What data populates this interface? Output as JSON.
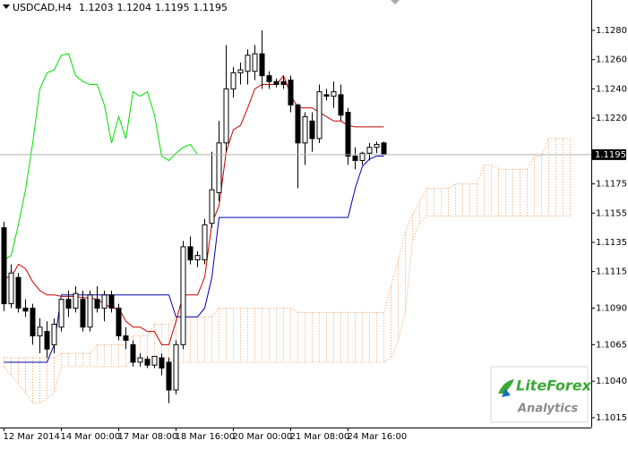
{
  "chart_data": {
    "type": "candlestick",
    "header": {
      "symbol": "USDCAD,H4",
      "values": [
        "1.1203",
        "1.1204",
        "1.1195",
        "1.1195"
      ]
    },
    "categories": [
      "12 Mar 2014",
      null,
      null,
      null,
      null,
      null,
      null,
      null,
      "14 Mar 00:00",
      null,
      null,
      null,
      null,
      null,
      null,
      null,
      "17 Mar 08:00",
      null,
      null,
      null,
      null,
      null,
      null,
      null,
      "18 Mar 16:00",
      null,
      null,
      null,
      null,
      null,
      null,
      null,
      "20 Mar 00:00",
      null,
      null,
      null,
      null,
      null,
      null,
      null,
      "21 Mar 08:00",
      null,
      null,
      null,
      null,
      null,
      null,
      null,
      "24 Mar 16:00",
      null,
      null,
      null,
      null,
      null
    ],
    "open": [
      1.1145,
      1.1093,
      1.1111,
      1.109,
      1.109,
      1.1071,
      1.1074,
      1.1065,
      1.1077,
      1.1096,
      1.109,
      1.1096,
      1.1077,
      1.1096,
      1.109,
      1.1099,
      1.109,
      1.1071,
      1.1065,
      1.1053,
      1.1055,
      1.1051,
      1.1056,
      1.1053,
      1.1034,
      1.1065,
      1.1132,
      1.1123,
      1.1123,
      1.1148,
      1.1169,
      1.1203,
      1.124,
      1.1251,
      1.1252,
      1.1252,
      1.1264,
      1.1249,
      1.1245,
      1.1245,
      1.1246,
      1.1229,
      1.1203,
      1.1218,
      1.1206,
      1.1236,
      1.1235,
      1.1236,
      1.1224,
      1.1194,
      1.1191,
      1.1196,
      1.12,
      1.1203
    ],
    "high": [
      1.1149,
      1.112,
      1.1114,
      1.1096,
      1.1093,
      1.1083,
      1.1081,
      1.1083,
      1.1096,
      1.1102,
      1.1105,
      1.1102,
      1.1102,
      1.1105,
      1.1102,
      1.1102,
      1.1093,
      1.1077,
      1.1068,
      1.1059,
      1.1057,
      1.1057,
      1.1059,
      1.1056,
      1.1068,
      1.1136,
      1.1139,
      1.1129,
      1.1151,
      1.1197,
      1.1218,
      1.127,
      1.1255,
      1.1258,
      1.1267,
      1.127,
      1.128,
      1.1252,
      1.1247,
      1.1249,
      1.1249,
      1.123,
      1.1224,
      1.1224,
      1.1243,
      1.124,
      1.1245,
      1.1243,
      1.1227,
      1.12,
      1.1197,
      1.1203,
      1.1204,
      1.1204
    ],
    "low": [
      1.1088,
      1.109,
      1.1087,
      1.1084,
      1.1065,
      1.1059,
      1.1056,
      1.1059,
      1.1074,
      1.1084,
      1.1087,
      1.1074,
      1.1074,
      1.1087,
      1.1081,
      1.1087,
      1.1068,
      1.1062,
      1.105,
      1.105,
      1.1049,
      1.1049,
      1.1044,
      1.1025,
      1.1031,
      1.1062,
      1.112,
      1.1118,
      1.112,
      1.1145,
      1.1163,
      1.1197,
      1.1234,
      1.1243,
      1.1243,
      1.1246,
      1.124,
      1.124,
      1.1241,
      1.124,
      1.1224,
      1.1172,
      1.1188,
      1.1197,
      1.1203,
      1.1232,
      1.1227,
      1.1218,
      1.1188,
      1.1185,
      1.1188,
      1.1191,
      1.1196,
      1.1195
    ],
    "close": [
      1.1093,
      1.1114,
      1.109,
      1.1088,
      1.1071,
      1.1077,
      1.1062,
      1.1079,
      1.1096,
      1.109,
      1.11,
      1.1077,
      1.1099,
      1.109,
      1.1099,
      1.109,
      1.1071,
      1.1068,
      1.1053,
      1.1056,
      1.1051,
      1.1057,
      1.1049,
      1.1034,
      1.1065,
      1.1132,
      1.1123,
      1.1126,
      1.1147,
      1.1171,
      1.1203,
      1.124,
      1.1251,
      1.1253,
      1.1263,
      1.1264,
      1.1249,
      1.1245,
      1.1243,
      1.1243,
      1.1229,
      1.1203,
      1.1221,
      1.1206,
      1.1238,
      1.1235,
      1.1238,
      1.1222,
      1.1194,
      1.1191,
      1.1196,
      1.12,
      1.1202,
      1.1195
    ],
    "red_line": [
      1.1111,
      1.1111,
      1.112,
      1.1117,
      1.1108,
      1.1102,
      1.1099,
      1.1099,
      1.1098,
      1.1098,
      1.1098,
      1.1097,
      1.1097,
      1.1096,
      1.1093,
      1.109,
      1.109,
      1.1081,
      1.1077,
      1.1077,
      1.1074,
      1.1074,
      1.1065,
      1.1065,
      1.1081,
      1.1099,
      1.1099,
      1.1099,
      1.1111,
      1.1148,
      1.116,
      1.1197,
      1.1212,
      1.1215,
      1.1227,
      1.124,
      1.1243,
      1.1243,
      1.1243,
      1.1249,
      1.1236,
      1.1227,
      1.1227,
      1.1227,
      1.1224,
      1.1221,
      1.1218,
      1.1218,
      1.1215,
      1.1214,
      1.1214,
      1.1214,
      1.1214,
      1.1214
    ],
    "blue_line": [
      1.1053,
      1.1053,
      1.1053,
      1.1053,
      1.1053,
      1.1053,
      1.1053,
      1.1065,
      1.1099,
      1.1099,
      1.1099,
      1.1099,
      1.1099,
      1.1099,
      1.1099,
      1.1099,
      1.1099,
      1.1099,
      1.1099,
      1.1099,
      1.1099,
      1.1099,
      1.1099,
      1.1099,
      1.1084,
      1.1084,
      1.1084,
      1.1084,
      1.109,
      1.1111,
      1.1152,
      1.1152,
      1.1152,
      1.1152,
      1.1152,
      1.1152,
      1.1152,
      1.1152,
      1.1152,
      1.1152,
      1.1152,
      1.1152,
      1.1152,
      1.1152,
      1.1152,
      1.1152,
      1.1152,
      1.1152,
      1.1152,
      1.1172,
      1.1187,
      1.1192,
      1.1194,
      1.1194
    ],
    "span_a": [
      1.1056,
      1.1056,
      1.1056,
      1.1056,
      1.1056,
      1.1056,
      1.1056,
      1.1056,
      1.1059,
      1.1059,
      1.1059,
      1.1059,
      1.1059,
      1.1065,
      1.1065,
      1.1065,
      1.1065,
      1.1065,
      1.1071,
      1.1071,
      1.1071,
      1.1079,
      1.1079,
      1.1079,
      1.1084,
      1.1084,
      1.1084,
      1.1084,
      1.1084,
      1.1084,
      1.109,
      1.109,
      1.109,
      1.109,
      1.109,
      1.109,
      1.109,
      1.109,
      1.109,
      1.109,
      1.109,
      1.1087,
      1.1087,
      1.1087,
      1.1087,
      1.1087,
      1.1087,
      1.1087,
      1.1087,
      1.1087,
      1.1087,
      1.1087,
      1.1087,
      1.1087,
      1.1105,
      1.1123,
      1.1142,
      1.1154,
      1.1163,
      1.1172,
      1.1172,
      1.1172,
      1.1172,
      1.1175,
      1.1175,
      1.1175,
      1.1175,
      1.1188,
      1.1188,
      1.1185,
      1.1185,
      1.1185,
      1.1185,
      1.1185,
      1.1194,
      1.1194,
      1.1206,
      1.1206,
      1.1206,
      1.1206
    ],
    "span_b": [
      1.105,
      1.1044,
      1.1038,
      1.1032,
      1.1025,
      1.1025,
      1.1028,
      1.1032,
      1.105,
      1.105,
      1.105,
      1.105,
      1.105,
      1.105,
      1.105,
      1.105,
      1.105,
      1.105,
      1.1056,
      1.1056,
      1.1056,
      1.1056,
      1.1056,
      1.1056,
      1.1053,
      1.1053,
      1.1053,
      1.1053,
      1.1053,
      1.1053,
      1.1053,
      1.1053,
      1.1053,
      1.1053,
      1.1053,
      1.1053,
      1.1053,
      1.1053,
      1.1053,
      1.1053,
      1.1053,
      1.1053,
      1.1053,
      1.1053,
      1.1053,
      1.1053,
      1.1053,
      1.1053,
      1.1053,
      1.1053,
      1.1053,
      1.1053,
      1.1053,
      1.1053,
      1.1056,
      1.1068,
      1.1087,
      1.1136,
      1.1148,
      1.1153,
      1.1153,
      1.1153,
      1.1153,
      1.1153,
      1.1153,
      1.1153,
      1.1153,
      1.1153,
      1.1153,
      1.1153,
      1.1153,
      1.1153,
      1.1153,
      1.1153,
      1.1153,
      1.1153,
      1.1153,
      1.1153,
      1.1153,
      1.1153
    ],
    "colors": {
      "red_line": "#c80000",
      "blue_line": "#0000b4",
      "chikou": "#00e000",
      "cloud": "#f0a060",
      "bear": "#000000",
      "bull": "#ffffff"
    },
    "ylim": [
      1.10083,
      1.13008
    ],
    "yticks": [
      {
        "value": 1.128,
        "label": "1.1280"
      },
      {
        "value": 1.126,
        "label": "1.1260"
      },
      {
        "value": 1.124,
        "label": "1.1240"
      },
      {
        "value": 1.122,
        "label": "1.1220"
      },
      {
        "value": 1.1175,
        "label": "1.1175"
      },
      {
        "value": 1.1155,
        "label": "1.1155"
      },
      {
        "value": 1.1135,
        "label": "1.1135"
      },
      {
        "value": 1.1115,
        "label": "1.1115"
      },
      {
        "value": 1.109,
        "label": "1.1090"
      },
      {
        "value": 1.1065,
        "label": "1.1065"
      },
      {
        "value": 1.104,
        "label": "1.1040"
      },
      {
        "value": 1.1015,
        "label": "1.1015"
      }
    ],
    "current_price": {
      "value": 1.1195,
      "label": "1.1195"
    },
    "grid": false,
    "logo": {
      "name": "LiteForex",
      "sub": "Analytics"
    }
  }
}
